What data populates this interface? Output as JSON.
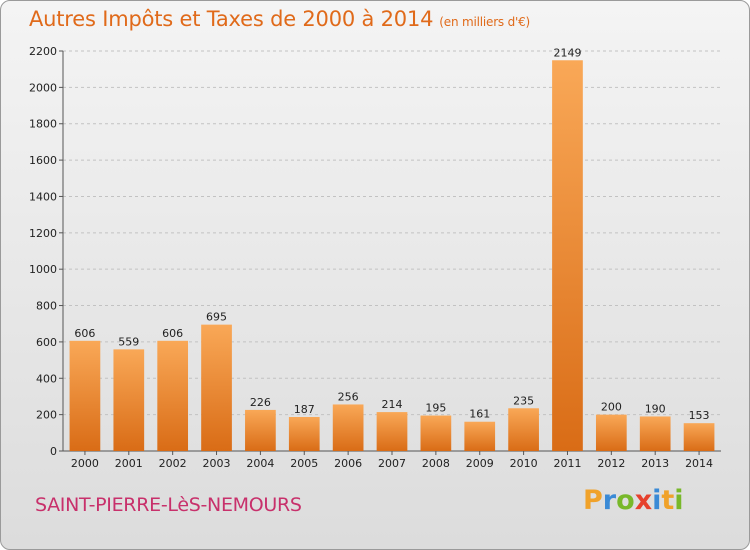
{
  "chart_data": {
    "type": "bar",
    "title": "Autres Impôts et Taxes de 2000 à 2014",
    "subtitle": "(en milliers d'€)",
    "categories": [
      "2000",
      "2001",
      "2002",
      "2003",
      "2004",
      "2005",
      "2006",
      "2007",
      "2008",
      "2009",
      "2010",
      "2011",
      "2012",
      "2013",
      "2014"
    ],
    "values": [
      606,
      559,
      606,
      695,
      226,
      187,
      256,
      214,
      195,
      161,
      235,
      2149,
      200,
      190,
      153
    ],
    "ylim": [
      0,
      2200
    ],
    "yticks": [
      0,
      200,
      400,
      600,
      800,
      1000,
      1200,
      1400,
      1600,
      1800,
      2000,
      2200
    ],
    "grid": true,
    "bar_color": "#f0923c"
  },
  "commune": "SAINT-PIERRE-LèS-NEMOURS",
  "logo": "Proxiti"
}
